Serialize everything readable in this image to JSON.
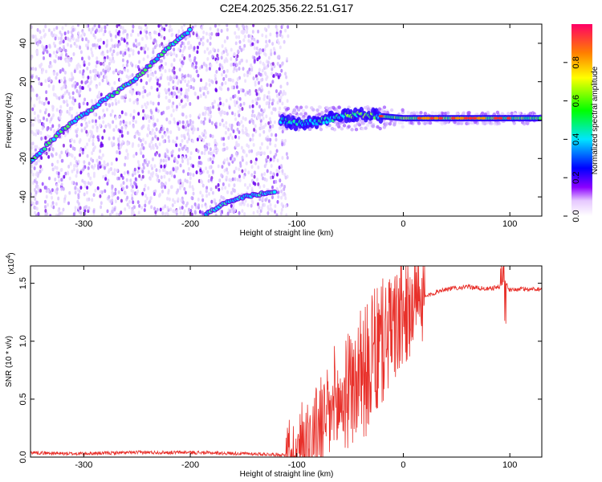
{
  "title": "C2E4.2025.356.22.51.G17",
  "chart_data": [
    {
      "type": "heatmap",
      "xlabel": "Height of straight line (km)",
      "ylabel": "Frequency (Hz)",
      "xlim": [
        -350,
        130
      ],
      "ylim": [
        -50,
        50
      ],
      "xticks": [
        -300,
        -200,
        -100,
        0,
        100
      ],
      "xticklabels": [
        "-300",
        "-200",
        "-100",
        "0",
        "100"
      ],
      "yticks": [
        -40,
        -20,
        0,
        20,
        40
      ],
      "yticklabels": [
        "-40",
        "-20",
        "0",
        "20",
        "40"
      ],
      "colorbar": {
        "label": "Normalized spectral amplitude",
        "range": [
          0,
          1
        ],
        "ticks": [
          0.0,
          0.2,
          0.4,
          0.6,
          0.8
        ],
        "ticklabels": [
          "0.0",
          "0.2",
          "0.4",
          "0.6",
          "0.8"
        ]
      },
      "features": [
        {
          "name": "rising track",
          "x": [
            -350,
            -320,
            -300,
            -250,
            -220,
            -200
          ],
          "y": [
            -22,
            -5,
            3,
            22,
            38,
            47
          ]
        },
        {
          "name": "lower track",
          "x": [
            -185,
            -170,
            -150,
            -120
          ],
          "y": [
            -49,
            -44,
            -40,
            -37
          ]
        },
        {
          "name": "steady signal",
          "x": [
            -115,
            -100,
            -80,
            -60,
            -40,
            -20,
            0,
            50,
            100,
            130
          ],
          "y": [
            0,
            -2,
            -1,
            2,
            3,
            2,
            1,
            1,
            1,
            1
          ]
        }
      ]
    },
    {
      "type": "line",
      "xlabel": "Height of straight line (km)",
      "ylabel": "SNR (10 * v/v)",
      "multiplier": "(x10",
      "multiplier_exp": "4",
      "multiplier_close": ")",
      "xlim": [
        -350,
        130
      ],
      "ylim": [
        0,
        1.65
      ],
      "xticks": [
        -300,
        -200,
        -100,
        0,
        100
      ],
      "xticklabels": [
        "-300",
        "-200",
        "-100",
        "0",
        "100"
      ],
      "yticks": [
        0.0,
        0.5,
        1.0,
        1.5
      ],
      "yticklabels": [
        "0.0",
        "0.5",
        "1.0",
        "1.5"
      ],
      "color": "#e8302a",
      "series": [
        {
          "x": [
            -350,
            -320,
            -300,
            -250,
            -200,
            -150,
            -110,
            -100,
            -95,
            -90,
            -85,
            -80,
            -75,
            -70,
            -65,
            -60,
            -55,
            -50,
            -45,
            -40,
            -35,
            -30,
            -25,
            -20,
            -15,
            -10,
            -5,
            0,
            5,
            10,
            15,
            20,
            25,
            30,
            35,
            40,
            50,
            60,
            70,
            80,
            90,
            95,
            100,
            110,
            120,
            130
          ],
          "y": [
            0.04,
            0.03,
            0.03,
            0.04,
            0.04,
            0.03,
            0.02,
            0.05,
            0.12,
            0.18,
            0.2,
            0.28,
            0.3,
            0.35,
            0.4,
            0.45,
            0.52,
            0.6,
            0.62,
            0.7,
            0.75,
            0.82,
            0.9,
            0.98,
            1.05,
            1.1,
            1.15,
            1.22,
            1.28,
            1.32,
            1.35,
            1.38,
            1.4,
            1.42,
            1.44,
            1.45,
            1.46,
            1.47,
            1.46,
            1.45,
            1.47,
            1.52,
            1.44,
            1.45,
            1.45,
            1.45
          ]
        }
      ]
    }
  ]
}
